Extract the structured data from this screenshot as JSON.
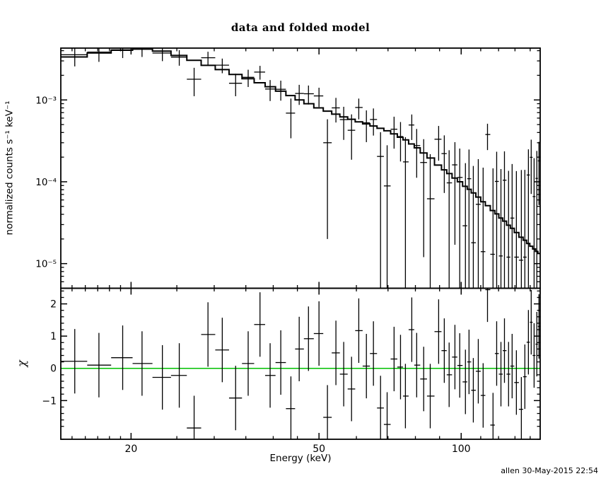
{
  "figure": {
    "background": "#ffffff",
    "foreground": "#000000"
  },
  "chart_data": {
    "type": "line",
    "subtype": "xspec-spectrum-with-residuals",
    "title": "data and folded model",
    "footer": "allen 30-May-2015 22:54",
    "xlabel": "Energy (keV)",
    "x_scale": "log",
    "x_range": [
      14.2,
      147
    ],
    "x_major_ticks": [
      20,
      50,
      100
    ],
    "x_major_tick_labels": [
      "20",
      "50",
      "100"
    ],
    "x_minor_ticks": [
      15,
      16,
      17,
      18,
      19,
      25,
      30,
      35,
      40,
      45,
      60,
      70,
      80,
      90,
      110,
      120,
      130,
      140
    ],
    "top_panel": {
      "ylabel": "normalized counts s⁻¹ keV⁻¹",
      "y_scale": "log",
      "y_range": [
        5e-06,
        0.0043
      ],
      "y_major_ticks": [
        0.001,
        0.0001,
        1e-05
      ],
      "y_tick_labels": [
        "10⁻³",
        "10⁻⁴",
        "10⁻⁵"
      ],
      "series_names": [
        "data",
        "folded model"
      ],
      "model": {
        "e": [
          15.2,
          17.1,
          19.2,
          21.1,
          23.3,
          25.3,
          27.2,
          29.1,
          31.2,
          33.3,
          35.4,
          37.5,
          39.4,
          41.5,
          43.6,
          45.4,
          47.5,
          50.0,
          52.1,
          54.3,
          56.4,
          58.6,
          60.7,
          63.0,
          65.2,
          67.5,
          69.7,
          72.1,
          74.4,
          76.2,
          78.6,
          80.5,
          83.3,
          86.0,
          89.6,
          92.1,
          94.3,
          97.0,
          99.3,
          102.1,
          103.9,
          106.1,
          108.7,
          111.3,
          113.7,
          116.8,
          118.9,
          121.4,
          123.5,
          126.0,
          128.2,
          130.9,
          134.1,
          136.4,
          138.8,
          140.7,
          142.7,
          144.6,
          146.1
        ],
        "v": [
          0.00335,
          0.00375,
          0.00405,
          0.0042,
          0.00395,
          0.0035,
          0.00305,
          0.00265,
          0.00235,
          0.00205,
          0.00182,
          0.00162,
          0.00145,
          0.00128,
          0.00113,
          0.001,
          0.0009,
          0.0008,
          0.00073,
          0.00067,
          0.00062,
          0.00058,
          0.00054,
          0.00051,
          0.00048,
          0.00045,
          0.00042,
          0.000385,
          0.00035,
          0.000325,
          0.00029,
          0.00026,
          0.000225,
          0.000195,
          0.00016,
          0.00014,
          0.000126,
          0.000111,
          0.0001,
          8.8e-05,
          8.1e-05,
          7.3e-05,
          6.5e-05,
          5.7e-05,
          5.1e-05,
          4.45e-05,
          4.05e-05,
          3.6e-05,
          3.3e-05,
          2.95e-05,
          2.7e-05,
          2.4e-05,
          2.1e-05,
          1.93e-05,
          1.76e-05,
          1.63e-05,
          1.51e-05,
          1.41e-05,
          1.33e-05
        ]
      },
      "data_columns": [
        "energy_keV",
        "value",
        "err_lo_value",
        "err_hi_value"
      ],
      "data_points": [
        [
          15.2,
          0.00357,
          0.00257,
          0.00457
        ],
        [
          17.1,
          0.00384,
          0.00292,
          0.00476
        ],
        [
          19.2,
          0.0041,
          0.00325,
          0.00495
        ],
        [
          21.1,
          0.00415,
          0.00335,
          0.00495
        ],
        [
          23.3,
          0.00374,
          0.00298,
          0.0045
        ],
        [
          25.3,
          0.00334,
          0.00262,
          0.00406
        ],
        [
          27.2,
          0.00179,
          0.00111,
          0.00247
        ],
        [
          29.1,
          0.00328,
          0.00268,
          0.00388
        ],
        [
          31.2,
          0.00266,
          0.00212,
          0.0032
        ],
        [
          33.3,
          0.0016,
          0.00111,
          0.00209
        ],
        [
          35.4,
          0.00189,
          0.00144,
          0.00234
        ],
        [
          37.5,
          0.00219,
          0.00177,
          0.00261
        ],
        [
          39.4,
          0.00136,
          0.00097,
          0.00175
        ],
        [
          41.5,
          0.00135,
          0.00098,
          0.00172
        ],
        [
          43.6,
          0.00069,
          0.00034,
          0.00104
        ],
        [
          45.4,
          0.0012,
          0.00087,
          0.00153
        ],
        [
          47.5,
          0.00119,
          0.00088,
          0.0015
        ],
        [
          50.0,
          0.00112,
          0.00082,
          0.00141
        ],
        [
          52.1,
          0.0003,
          2e-05,
          0.00058
        ],
        [
          54.3,
          0.0008,
          0.00053,
          0.00106
        ],
        [
          56.4,
          0.000575,
          0.000325,
          0.000825
        ],
        [
          58.6,
          0.000426,
          0.000186,
          0.000666
        ],
        [
          60.7,
          0.000809,
          0.000579,
          0.001039
        ],
        [
          63.0,
          0.000525,
          0.000305,
          0.000745
        ],
        [
          65.2,
          0.000577,
          0.000367,
          0.000787
        ],
        [
          67.5,
          0.000204,
          4e-06,
          0.000404
        ],
        [
          69.7,
          8.9e-05,
          0,
          0.000279
        ],
        [
          72.1,
          0.000439,
          0.000254,
          0.000624
        ],
        [
          74.4,
          0.000357,
          0.000177,
          0.000537
        ],
        [
          76.2,
          0.000175,
          0,
          0.00035
        ],
        [
          78.6,
          0.000494,
          0.000324,
          0.000664
        ],
        [
          80.5,
          0.000277,
          0.000112,
          0.000442
        ],
        [
          83.3,
          0.000172,
          1.2e-05,
          0.000332
        ],
        [
          86.0,
          6.2e-05,
          0,
          0.000217
        ],
        [
          89.6,
          0.000331,
          0.000181,
          0.000481
        ],
        [
          92.1,
          0.000221,
          7.3e-05,
          0.000369
        ],
        [
          94.3,
          9.7e-05,
          0,
          0.000243
        ],
        [
          97.0,
          0.000161,
          1.7e-05,
          0.000305
        ],
        [
          99.3,
          0.000113,
          0,
          0.000255
        ],
        [
          102.1,
          2.9e-05,
          0,
          0.000169
        ],
        [
          103.9,
          0.000109,
          0,
          0.000248
        ],
        [
          106.1,
          1.8e-05,
          0,
          0.000156
        ],
        [
          108.7,
          5.3e-05,
          0,
          0.000189
        ],
        [
          111.3,
          1.4e-05,
          0,
          0.000149
        ],
        [
          113.7,
          0.000378,
          0.000244,
          0.000512
        ],
        [
          116.8,
          1.3e-05,
          0,
          0.000146
        ],
        [
          118.9,
          0.000101,
          0,
          0.000233
        ],
        [
          121.4,
          1.24e-05,
          0,
          0.000143
        ],
        [
          123.5,
          0.0001045,
          0,
          0.000235
        ],
        [
          126.0,
          1.2e-05,
          0,
          0.000136
        ],
        [
          128.2,
          3.6e-05,
          0,
          0.000165
        ],
        [
          130.9,
          1.2e-05,
          0,
          0.000135
        ],
        [
          134.1,
          1.1e-05,
          0,
          0.000139
        ],
        [
          136.4,
          1.2e-05,
          0,
          0.00014
        ],
        [
          138.8,
          0.000121,
          0,
          0.000249
        ],
        [
          140.7,
          0.000199,
          7.1e-05,
          0.000327
        ],
        [
          142.7,
          6.6e-05,
          0,
          0.000194
        ],
        [
          144.6,
          0.00011,
          0,
          0.000238
        ],
        [
          146.1,
          0.00018,
          5.2e-05,
          0.000308
        ]
      ]
    },
    "bottom_panel": {
      "ylabel": "χ",
      "y_scale": "linear",
      "y_range": [
        -2.2,
        2.485
      ],
      "y_major_ticks": [
        -1,
        0,
        1,
        2
      ],
      "y_tick_labels": [
        "−1",
        "0",
        "1",
        "2"
      ],
      "y_minor_step": 0.2,
      "zero_line_color": "#00c000",
      "residual_err": 1.0,
      "data_columns": [
        "energy_keV",
        "chi"
      ],
      "data_points": [
        [
          15.2,
          0.22
        ],
        [
          17.1,
          0.1
        ],
        [
          19.2,
          0.33
        ],
        [
          21.1,
          0.15
        ],
        [
          23.3,
          -0.28
        ],
        [
          25.3,
          -0.22
        ],
        [
          27.2,
          -1.85
        ],
        [
          29.1,
          1.05
        ],
        [
          31.2,
          0.57
        ],
        [
          33.3,
          -0.92
        ],
        [
          35.4,
          0.15
        ],
        [
          37.5,
          1.36
        ],
        [
          39.4,
          -0.22
        ],
        [
          41.5,
          0.18
        ],
        [
          43.6,
          -1.25
        ],
        [
          45.4,
          0.6
        ],
        [
          47.5,
          0.92
        ],
        [
          50.0,
          1.08
        ],
        [
          52.1,
          -1.52
        ],
        [
          54.3,
          0.48
        ],
        [
          56.4,
          -0.18
        ],
        [
          58.6,
          -0.64
        ],
        [
          60.7,
          1.17
        ],
        [
          63.0,
          0.07
        ],
        [
          65.2,
          0.46
        ],
        [
          67.5,
          -1.23
        ],
        [
          69.7,
          -1.74
        ],
        [
          72.1,
          0.29
        ],
        [
          74.4,
          0.04
        ],
        [
          76.2,
          -0.86
        ],
        [
          78.6,
          1.2
        ],
        [
          80.5,
          0.1
        ],
        [
          83.3,
          -0.33
        ],
        [
          86.0,
          -0.86
        ],
        [
          89.6,
          1.14
        ],
        [
          92.1,
          0.55
        ],
        [
          94.3,
          -0.2
        ],
        [
          97.0,
          0.35
        ],
        [
          99.3,
          0.09
        ],
        [
          102.1,
          -0.42
        ],
        [
          103.9,
          0.2
        ],
        [
          106.1,
          -0.68
        ],
        [
          108.7,
          -0.09
        ],
        [
          111.3,
          -0.84
        ],
        [
          113.7,
          2.44
        ],
        [
          116.8,
          -1.76
        ],
        [
          118.9,
          0.46
        ],
        [
          121.4,
          -0.18
        ],
        [
          123.5,
          0.55
        ],
        [
          126.0,
          -0.18
        ],
        [
          128.2,
          0.07
        ],
        [
          130.9,
          -0.44
        ],
        [
          134.1,
          -1.27
        ],
        [
          136.4,
          -0.26
        ],
        [
          138.8,
          0.81
        ],
        [
          140.7,
          1.43
        ],
        [
          142.7,
          0.4
        ],
        [
          144.6,
          0.75
        ],
        [
          146.1,
          1.3
        ]
      ]
    }
  }
}
